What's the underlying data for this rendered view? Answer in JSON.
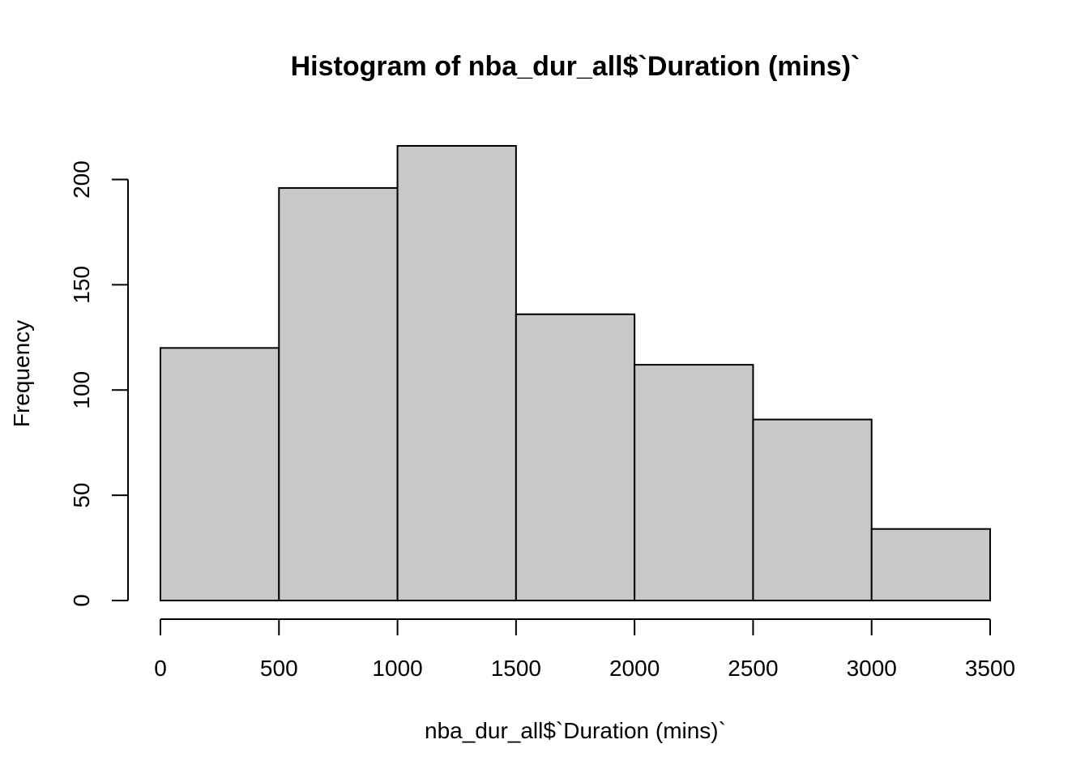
{
  "chart_data": {
    "type": "bar",
    "subtype": "histogram",
    "title": "Histogram of nba_dur_all$`Duration (mins)`",
    "xlabel": "nba_dur_all$`Duration (mins)`",
    "ylabel": "Frequency",
    "bins": [
      {
        "start": 0,
        "end": 500,
        "count": 120
      },
      {
        "start": 500,
        "end": 1000,
        "count": 196
      },
      {
        "start": 1000,
        "end": 1500,
        "count": 216
      },
      {
        "start": 1500,
        "end": 2000,
        "count": 136
      },
      {
        "start": 2000,
        "end": 2500,
        "count": 112
      },
      {
        "start": 2500,
        "end": 3000,
        "count": 86
      },
      {
        "start": 3000,
        "end": 3500,
        "count": 34
      }
    ],
    "xlim": [
      0,
      3500
    ],
    "ylim": [
      0,
      216
    ],
    "x_ticks": [
      "0",
      "500",
      "1000",
      "1500",
      "2000",
      "2500",
      "3000",
      "3500"
    ],
    "y_ticks": [
      "0",
      "50",
      "100",
      "150",
      "200"
    ],
    "bar_color": "#c8c8c8",
    "grid": false,
    "legend": "none"
  }
}
